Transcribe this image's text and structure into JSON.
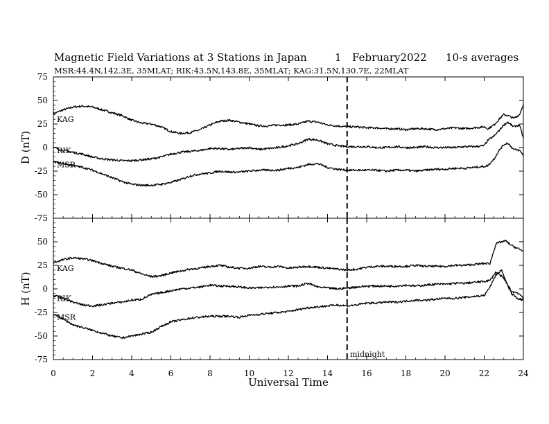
{
  "figure": {
    "title_main": "Magnetic Field Variations at 3 Stations in Japan",
    "title_day": "1",
    "title_month_year": "February2022",
    "title_avg": "10-s averages",
    "subtitle": "MSR:44.4N,142.3E, 35MLAT;  RIK:43.5N,143.8E, 35MLAT;  KAG:31.5N,130.7E, 22MLAT",
    "xlabel": "Universal Time",
    "midnight_label": "midnight"
  },
  "chart_data": [
    {
      "type": "line",
      "panel": "D",
      "ylabel": "D (nT)",
      "xlim": [
        0,
        24
      ],
      "ylim": [
        -75,
        75
      ],
      "x_ticks": [
        0,
        2,
        4,
        6,
        8,
        10,
        12,
        14,
        16,
        18,
        20,
        22,
        24
      ],
      "y_ticks": [
        -75,
        -50,
        -25,
        0,
        25,
        50,
        75
      ],
      "vline_x": 15,
      "grid": false,
      "series": [
        {
          "name": "KAG",
          "x": [
            0,
            0.5,
            1,
            1.5,
            2,
            2.5,
            3,
            3.5,
            4,
            4.5,
            5,
            5.5,
            6,
            6.5,
            7,
            7.5,
            8,
            8.5,
            9,
            9.5,
            10,
            10.5,
            11,
            11.5,
            12,
            12.5,
            13,
            13.5,
            14,
            14.5,
            15,
            15.5,
            16,
            16.5,
            17,
            17.5,
            18,
            18.5,
            19,
            19.5,
            20,
            20.5,
            21,
            21.5,
            22,
            22.2,
            22.5,
            22.8,
            23,
            23.2,
            23.5,
            23.8,
            24
          ],
          "values": [
            36,
            40,
            43,
            44,
            43,
            40,
            37,
            34,
            29,
            26,
            25,
            22,
            17,
            15,
            16,
            19,
            24,
            28,
            29,
            27,
            25,
            23,
            23,
            24,
            24,
            25,
            28,
            27,
            24,
            23,
            22,
            22,
            21,
            21,
            20,
            20,
            19,
            20,
            20,
            19,
            20,
            21,
            20,
            21,
            22,
            20,
            24,
            31,
            35,
            34,
            31,
            35,
            46
          ]
        },
        {
          "name": "RIK",
          "x": [
            0,
            0.5,
            1,
            1.5,
            2,
            2.5,
            3,
            3.5,
            4,
            4.5,
            5,
            5.5,
            6,
            6.5,
            7,
            7.5,
            8,
            8.5,
            9,
            9.5,
            10,
            10.5,
            11,
            11.5,
            12,
            12.5,
            13,
            13.5,
            14,
            14.5,
            15,
            15.5,
            16,
            16.5,
            17,
            17.5,
            18,
            18.5,
            19,
            19.5,
            20,
            20.5,
            21,
            21.5,
            22,
            22.2,
            22.5,
            22.8,
            23,
            23.2,
            23.5,
            23.8,
            24
          ],
          "values": [
            0,
            -3,
            -5,
            -7,
            -10,
            -12,
            -13,
            -14,
            -14,
            -13,
            -12,
            -10,
            -7,
            -5,
            -4,
            -3,
            -1,
            -1,
            -2,
            -1,
            0,
            -2,
            -1,
            0,
            2,
            4,
            9,
            8,
            4,
            2,
            1,
            1,
            1,
            0,
            0,
            1,
            0,
            0,
            1,
            0,
            0,
            0,
            1,
            1,
            2,
            8,
            12,
            19,
            24,
            27,
            22,
            24,
            10
          ]
        },
        {
          "name": "MSR",
          "x": [
            0,
            0.5,
            1,
            1.5,
            2,
            2.5,
            3,
            3.5,
            4,
            4.5,
            5,
            5.5,
            6,
            6.5,
            7,
            7.5,
            8,
            8.5,
            9,
            9.5,
            10,
            10.5,
            11,
            11.5,
            12,
            12.5,
            13,
            13.5,
            14,
            14.5,
            15,
            15.5,
            16,
            16.5,
            17,
            17.5,
            18,
            18.5,
            19,
            19.5,
            20,
            20.5,
            21,
            21.5,
            22,
            22.2,
            22.5,
            22.8,
            23,
            23.2,
            23.5,
            23.8,
            24
          ],
          "values": [
            -15,
            -17,
            -19,
            -21,
            -24,
            -28,
            -32,
            -36,
            -39,
            -40,
            -40,
            -39,
            -37,
            -34,
            -30,
            -28,
            -27,
            -25,
            -26,
            -26,
            -25,
            -24,
            -24,
            -24,
            -22,
            -21,
            -18,
            -17,
            -21,
            -23,
            -24,
            -24,
            -24,
            -24,
            -25,
            -24,
            -24,
            -25,
            -24,
            -23,
            -23,
            -22,
            -22,
            -21,
            -20,
            -19,
            -12,
            -2,
            3,
            5,
            -2,
            -3,
            -8
          ]
        }
      ]
    },
    {
      "type": "line",
      "panel": "H",
      "ylabel": "H (nT)",
      "xlim": [
        0,
        24
      ],
      "ylim": [
        -75,
        75
      ],
      "x_ticks": [
        0,
        2,
        4,
        6,
        8,
        10,
        12,
        14,
        16,
        18,
        20,
        22,
        24
      ],
      "y_ticks": [
        -75,
        -50,
        -25,
        0,
        25,
        50,
        75
      ],
      "vline_x": 15,
      "grid": false,
      "series": [
        {
          "name": "KAG",
          "x": [
            0,
            0.5,
            1,
            1.5,
            2,
            2.5,
            3,
            3.5,
            4,
            4.5,
            5,
            5.5,
            6,
            6.5,
            7,
            7.5,
            8,
            8.5,
            9,
            9.5,
            10,
            10.5,
            11,
            11.5,
            12,
            12.5,
            13,
            13.5,
            14,
            14.5,
            15,
            15.5,
            16,
            16.5,
            17,
            17.5,
            18,
            18.5,
            19,
            19.5,
            20,
            20.5,
            21,
            21.5,
            22,
            22.3,
            22.6,
            22.9,
            23.1,
            23.4,
            23.7,
            24
          ],
          "values": [
            28,
            31,
            33,
            32,
            30,
            27,
            24,
            22,
            20,
            16,
            13,
            14,
            17,
            19,
            21,
            22,
            24,
            25,
            23,
            22,
            22,
            24,
            23,
            24,
            22,
            23,
            24,
            23,
            22,
            21,
            20,
            21,
            23,
            24,
            24,
            24,
            24,
            25,
            24,
            24,
            24,
            25,
            25,
            26,
            27,
            27,
            48,
            50,
            51,
            46,
            43,
            40
          ]
        },
        {
          "name": "RIK",
          "x": [
            0,
            0.5,
            1,
            1.5,
            2,
            2.5,
            3,
            3.5,
            4,
            4.5,
            5,
            5.5,
            6,
            6.5,
            7,
            7.5,
            8,
            8.5,
            9,
            9.5,
            10,
            10.5,
            11,
            11.5,
            12,
            12.5,
            13,
            13.5,
            14,
            14.5,
            15,
            15.5,
            16,
            16.5,
            17,
            17.5,
            18,
            18.5,
            19,
            19.5,
            20,
            20.5,
            21,
            21.5,
            22,
            22.3,
            22.6,
            22.9,
            23.1,
            23.4,
            23.7,
            24
          ],
          "values": [
            -7,
            -10,
            -14,
            -17,
            -18,
            -17,
            -15,
            -14,
            -12,
            -11,
            -6,
            -4,
            -2,
            0,
            1,
            2,
            4,
            3,
            3,
            2,
            1,
            1,
            2,
            2,
            3,
            3,
            6,
            2,
            1,
            0,
            1,
            2,
            3,
            3,
            3,
            3,
            4,
            3,
            4,
            5,
            5,
            6,
            6,
            7,
            8,
            9,
            18,
            13,
            8,
            -3,
            -4,
            -9
          ]
        },
        {
          "name": "MSR",
          "x": [
            0,
            0.5,
            1,
            1.5,
            2,
            2.5,
            3,
            3.5,
            4,
            4.5,
            5,
            5.5,
            6,
            6.5,
            7,
            7.5,
            8,
            8.5,
            9,
            9.5,
            10,
            10.5,
            11,
            11.5,
            12,
            12.5,
            13,
            13.5,
            14,
            14.5,
            15,
            15.5,
            16,
            16.5,
            17,
            17.5,
            18,
            18.5,
            19,
            19.5,
            20,
            20.5,
            21,
            21.5,
            22,
            22.3,
            22.6,
            22.9,
            23.1,
            23.4,
            23.7,
            24
          ],
          "values": [
            -27,
            -32,
            -38,
            -41,
            -44,
            -47,
            -50,
            -52,
            -50,
            -48,
            -46,
            -40,
            -35,
            -33,
            -31,
            -30,
            -29,
            -29,
            -29,
            -30,
            -28,
            -27,
            -26,
            -25,
            -24,
            -22,
            -20,
            -19,
            -18,
            -17,
            -18,
            -17,
            -15,
            -15,
            -14,
            -14,
            -13,
            -12,
            -12,
            -11,
            -10,
            -10,
            -9,
            -8,
            -7,
            2,
            15,
            20,
            8,
            -5,
            -10,
            -12
          ]
        }
      ]
    }
  ]
}
